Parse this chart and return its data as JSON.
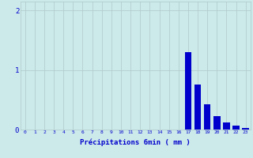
{
  "hours": [
    0,
    1,
    2,
    3,
    4,
    5,
    6,
    7,
    8,
    9,
    10,
    11,
    12,
    13,
    14,
    15,
    16,
    17,
    18,
    19,
    20,
    21,
    22,
    23
  ],
  "values": [
    0,
    0,
    0,
    0,
    0,
    0,
    0,
    0,
    0,
    0,
    0,
    0,
    0,
    0,
    0,
    0,
    0,
    1.3,
    0.75,
    0.42,
    0.22,
    0.12,
    0.06,
    0.03
  ],
  "bar_color": "#0000cc",
  "background_color": "#cceaea",
  "grid_color": "#b0c8c8",
  "xlabel": "Précipitations 6min ( mm )",
  "xlabel_color": "#0000cc",
  "ylim": [
    0,
    2.15
  ],
  "yticks": [
    0,
    1,
    2
  ],
  "xlim": [
    -0.5,
    23.5
  ],
  "bar_width": 0.7
}
